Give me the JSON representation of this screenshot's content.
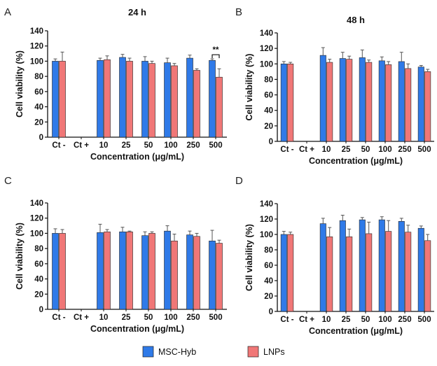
{
  "colors": {
    "msc": "#2f7ae8",
    "lnp": "#f07777"
  },
  "legend": [
    {
      "label": "MSC-Hyb",
      "color": "#2f7ae8"
    },
    {
      "label": "LNPs",
      "color": "#f07777"
    }
  ],
  "chart_data": [
    {
      "type": "bar",
      "panel": "A",
      "title": "24 h",
      "xlabel": "Concentration (μg/mL)",
      "ylabel": "Cell viability (%)",
      "ylim": [
        0,
        140
      ],
      "yticks": [
        0,
        20,
        40,
        60,
        80,
        100,
        120,
        140
      ],
      "categories": [
        "Ct -",
        "Ct +",
        "10",
        "25",
        "50",
        "100",
        "250",
        "500"
      ],
      "series": [
        {
          "name": "MSC-Hyb",
          "values": [
            100,
            null,
            101,
            105,
            100,
            98,
            104,
            101
          ],
          "errors": [
            3,
            null,
            3,
            4,
            6,
            6,
            4,
            2
          ]
        },
        {
          "name": "LNPs",
          "values": [
            100,
            null,
            102,
            100,
            97,
            94,
            88,
            79
          ],
          "errors": [
            12,
            null,
            5,
            4,
            3,
            3,
            2,
            11
          ]
        }
      ],
      "annotation": {
        "text": "**",
        "category": "500"
      }
    },
    {
      "type": "bar",
      "panel": "B",
      "title": "48 h",
      "xlabel": "Concentration (μg/mL)",
      "ylabel": "Cell viability (%)",
      "ylim": [
        0,
        140
      ],
      "yticks": [
        0,
        20,
        40,
        60,
        80,
        100,
        120,
        140
      ],
      "categories": [
        "Ct -",
        "Ct +",
        "10",
        "25",
        "50",
        "100",
        "250",
        "500"
      ],
      "series": [
        {
          "name": "MSC-Hyb",
          "values": [
            100,
            null,
            111,
            107,
            108,
            104,
            103,
            96
          ],
          "errors": [
            3,
            null,
            10,
            8,
            10,
            5,
            12,
            2
          ]
        },
        {
          "name": "LNPs",
          "values": [
            100,
            null,
            102,
            106,
            102,
            99,
            94,
            90
          ],
          "errors": [
            2,
            null,
            4,
            4,
            3,
            4,
            6,
            3
          ]
        }
      ]
    },
    {
      "type": "bar",
      "panel": "C",
      "title": "",
      "xlabel": "Concentration (μg/mL)",
      "ylabel": "Cell viability (%)",
      "ylim": [
        0,
        140
      ],
      "yticks": [
        0,
        20,
        40,
        60,
        80,
        100,
        120,
        140
      ],
      "categories": [
        "Ct -",
        "Ct +",
        "10",
        "25",
        "50",
        "100",
        "250",
        "500"
      ],
      "series": [
        {
          "name": "MSC-Hyb",
          "values": [
            100,
            null,
            101,
            102,
            97,
            103,
            98,
            90
          ],
          "errors": [
            6,
            null,
            11,
            6,
            5,
            7,
            5,
            14
          ]
        },
        {
          "name": "LNPs",
          "values": [
            100,
            null,
            102,
            102,
            100,
            90,
            96,
            87
          ],
          "errors": [
            5,
            null,
            3,
            1,
            2,
            9,
            4,
            4
          ]
        }
      ]
    },
    {
      "type": "bar",
      "panel": "D",
      "title": "",
      "xlabel": "Concentration (μg/mL)",
      "ylabel": "Cell viability (%)",
      "ylim": [
        0,
        140
      ],
      "yticks": [
        0,
        20,
        40,
        60,
        80,
        100,
        120,
        140
      ],
      "categories": [
        "Ct -",
        "Ct +",
        "10",
        "25",
        "50",
        "100",
        "250",
        "500"
      ],
      "series": [
        {
          "name": "MSC-Hyb",
          "values": [
            100,
            null,
            114,
            118,
            119,
            119,
            117,
            108
          ],
          "errors": [
            4,
            null,
            7,
            7,
            3,
            4,
            4,
            3
          ]
        },
        {
          "name": "LNPs",
          "values": [
            100,
            null,
            97,
            97,
            101,
            104,
            103,
            92
          ],
          "errors": [
            3,
            null,
            12,
            10,
            15,
            14,
            9,
            8
          ]
        }
      ]
    }
  ]
}
